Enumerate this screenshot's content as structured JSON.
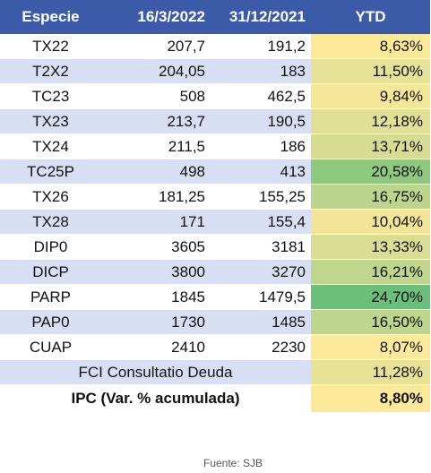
{
  "headers": {
    "especie": "Especie",
    "date1": "16/3/2022",
    "date2": "31/12/2021",
    "ytd": "YTD"
  },
  "rows": [
    {
      "especie": "TX22",
      "v1": "207,7",
      "v2": "191,2",
      "ytd": "8,63%",
      "color": "#fbe998"
    },
    {
      "especie": "T2X2",
      "v1": "204,05",
      "v2": "183",
      "ytd": "11,50%",
      "color": "#e6e297"
    },
    {
      "especie": "TC23",
      "v1": "508",
      "v2": "462,5",
      "ytd": "9,84%",
      "color": "#f5e698"
    },
    {
      "especie": "TX23",
      "v1": "213,7",
      "v2": "190,5",
      "ytd": "12,18%",
      "color": "#e0e096"
    },
    {
      "especie": "TX24",
      "v1": "211,5",
      "v2": "186",
      "ytd": "13,71%",
      "color": "#d6dd93"
    },
    {
      "especie": "TC25P",
      "v1": "498",
      "v2": "413",
      "ytd": "20,58%",
      "color": "#8ec97f"
    },
    {
      "especie": "TX26",
      "v1": "181,25",
      "v2": "155,25",
      "ytd": "16,75%",
      "color": "#bcd58c"
    },
    {
      "especie": "TX28",
      "v1": "171",
      "v2": "155,4",
      "ytd": "10,04%",
      "color": "#f2e598"
    },
    {
      "especie": "DIP0",
      "v1": "3605",
      "v2": "3181",
      "ytd": "13,33%",
      "color": "#d8de94"
    },
    {
      "especie": "DICP",
      "v1": "3800",
      "v2": "3270",
      "ytd": "16,21%",
      "color": "#c0d68d"
    },
    {
      "especie": "PARP",
      "v1": "1845",
      "v2": "1479,5",
      "ytd": "24,70%",
      "color": "#6bbf7a"
    },
    {
      "especie": "PAP0",
      "v1": "1730",
      "v2": "1485",
      "ytd": "16,50%",
      "color": "#bdd58c"
    },
    {
      "especie": "CUAP",
      "v1": "2410",
      "v2": "2230",
      "ytd": "8,07%",
      "color": "#fde99a"
    }
  ],
  "fci": {
    "label": "FCI Consultatio Deuda",
    "ytd": "11,28%",
    "color": "#e8e297"
  },
  "ipc": {
    "label": "IPC (Var. % acumulada)",
    "ytd": "8,80%",
    "color": "#fce99a"
  },
  "source": "Fuente: SJB",
  "colors": {
    "header_bg": "#3b5aa8",
    "stripe": "#d9dff2"
  }
}
